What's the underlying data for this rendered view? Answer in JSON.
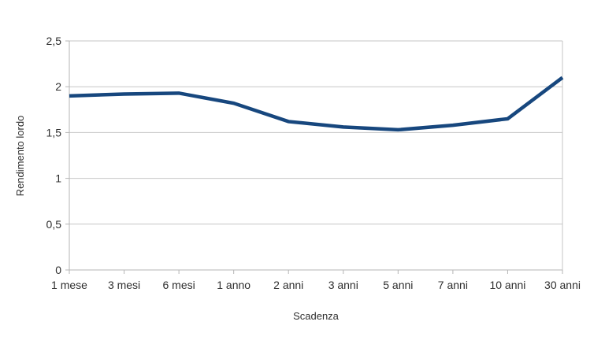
{
  "chart_data": {
    "type": "line",
    "title": "",
    "xlabel": "Scadenza",
    "ylabel": "Rendimento lordo",
    "categories": [
      "1 mese",
      "3 mesi",
      "6 mesi",
      "1 anno",
      "2 anni",
      "3 anni",
      "5 anni",
      "7 anni",
      "10 anni",
      "30 anni"
    ],
    "series": [
      {
        "name": "Rendimento lordo",
        "values": [
          1.9,
          1.92,
          1.93,
          1.82,
          1.62,
          1.56,
          1.53,
          1.58,
          1.65,
          2.1
        ]
      }
    ],
    "ylim": [
      0,
      2.5
    ],
    "yticks": [
      0,
      0.5,
      1,
      1.5,
      2,
      2.5
    ],
    "ytick_labels": [
      "0",
      "0,5",
      "1",
      "1,5",
      "2",
      "2,5"
    ],
    "grid": "horizontal",
    "legend_position": "none",
    "colors": {
      "line": "#17477e",
      "grid": "#c6c6c6",
      "axis": "#b5b5b5",
      "text": "#2e2e2e",
      "background": "#ffffff"
    }
  }
}
